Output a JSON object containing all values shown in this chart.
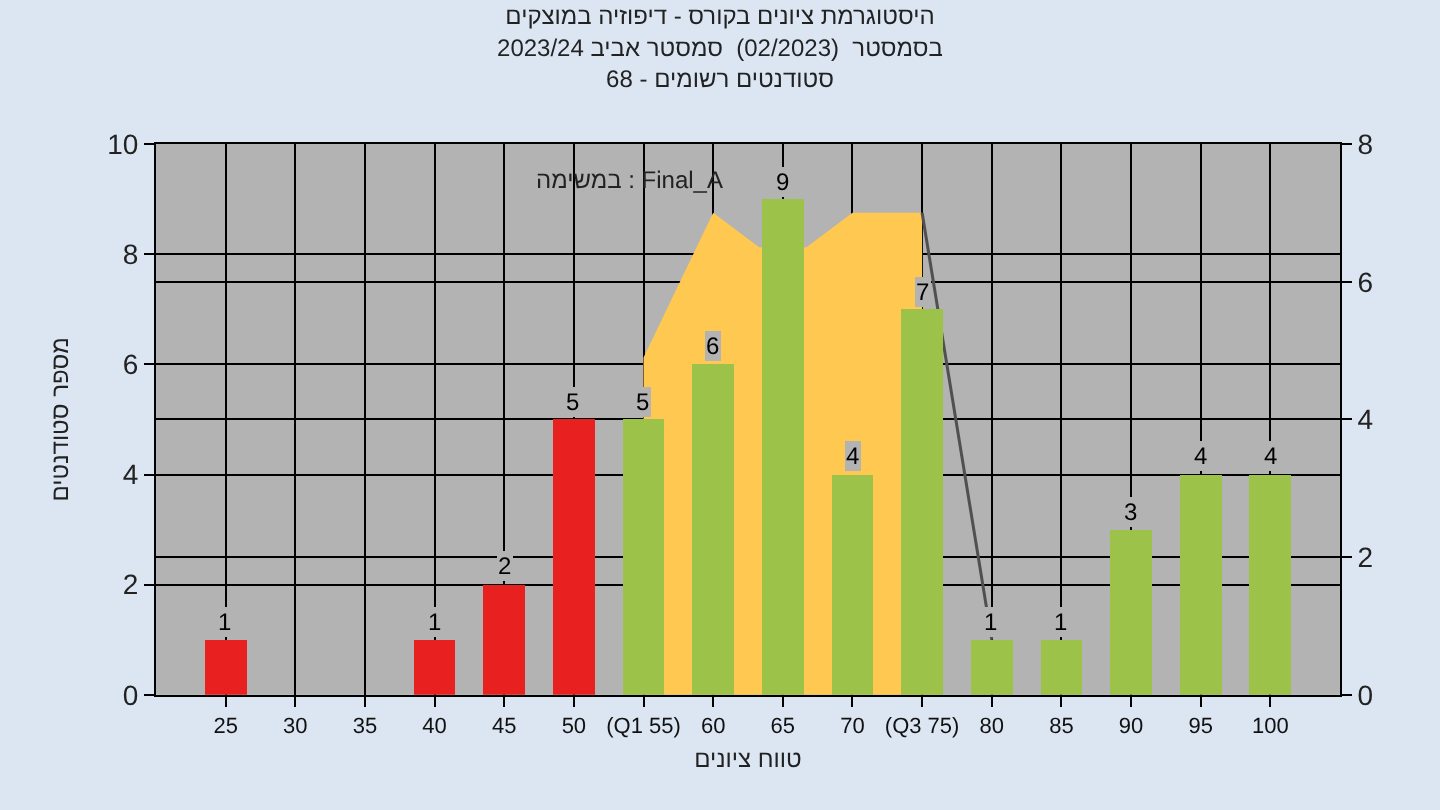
{
  "chart_data": {
    "type": "bar",
    "title": "היסטוגרמת ציונים בקורס - דיפוזיה במוצקים\nבסמסטר  (02/2023)  סמסטר אביב 2023/24\nסטודנטים רשומים - 68",
    "xlabel": "טווח ציונים",
    "ylabel": "מספר סטודנטים",
    "annotations": [
      "במשימה : Final_A"
    ],
    "x": [
      25,
      30,
      35,
      40,
      45,
      50,
      55,
      60,
      65,
      70,
      75,
      80,
      85,
      90,
      95,
      100
    ],
    "values": [
      1,
      0,
      0,
      1,
      2,
      5,
      5,
      6,
      9,
      4,
      7,
      1,
      1,
      3,
      4,
      4
    ],
    "value_labels": [
      "1",
      null,
      null,
      "1",
      "2",
      "5",
      "5",
      "6",
      "9",
      "4",
      "7",
      "1",
      "1",
      "3",
      "4",
      "4"
    ],
    "colors": [
      "#e82020",
      "#e82020",
      "#e82020",
      "#e82020",
      "#e82020",
      "#e82020",
      "#9cc24a",
      "#9cc24a",
      "#9cc24a",
      "#9cc24a",
      "#9cc24a",
      "#9cc24a",
      "#9cc24a",
      "#9cc24a",
      "#9cc24a",
      "#9cc24a"
    ],
    "series": [
      {
        "type": "area",
        "axis": "y2",
        "color": "#ffc850",
        "x": [
          55,
          60,
          63.3,
          66.7,
          70,
          75
        ],
        "values": [
          4.9,
          7,
          6.5,
          6.5,
          7,
          7
        ]
      },
      {
        "type": "line",
        "axis": "y2",
        "color": "#505050",
        "x": [
          75,
          80
        ],
        "values": [
          7,
          0.8
        ]
      }
    ],
    "xlim": [
      20,
      105
    ],
    "xticks": [
      25,
      30,
      35,
      40,
      45,
      50,
      {
        "value": 55,
        "label": "(Q1 55)"
      },
      60,
      65,
      70,
      {
        "value": 75,
        "label": "(Q3 75)"
      },
      80,
      85,
      90,
      95,
      100
    ],
    "ylim": [
      0,
      10
    ],
    "yticks": [
      0,
      2,
      4,
      6,
      8,
      10
    ],
    "y2lim": [
      0,
      8
    ],
    "y2ticks": [
      0,
      2,
      4,
      6,
      8
    ],
    "grid": true
  }
}
